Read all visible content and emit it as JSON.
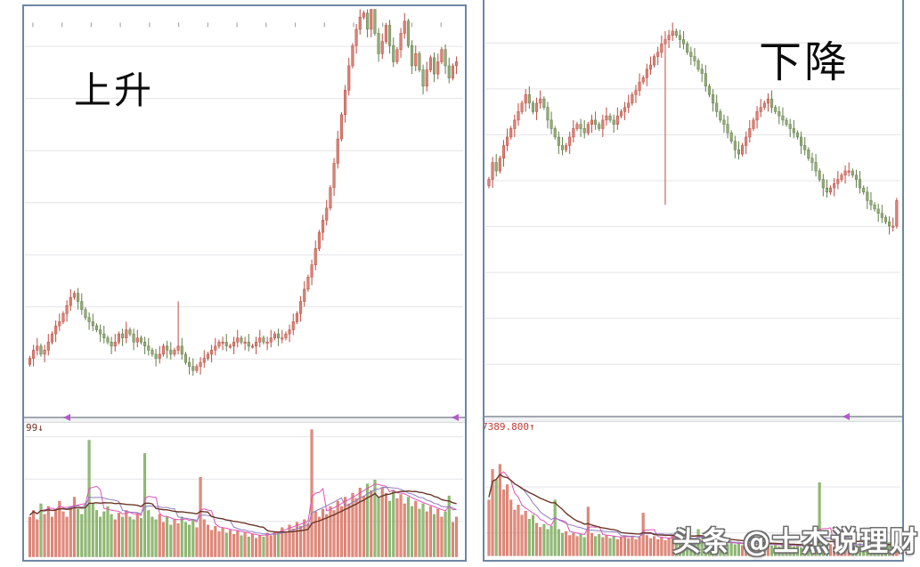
{
  "watermark": {
    "text": "头条 @士杰说理财"
  },
  "colors": {
    "candle_up": "#bb4a3e",
    "candle_up_fill": "#d98478",
    "candle_down": "#5f7d49",
    "candle_down_fill": "#97ab78",
    "volume_up_fill": "#e28b7c",
    "volume_up_stroke": "#c9604f",
    "volume_down_fill": "#92bb74",
    "volume_down_stroke": "#6f9c53",
    "ma_fast": "#e052b6",
    "ma_mid": "#8f7ac2",
    "ma_slow": "#6b3626",
    "grid": "#e4e4e8",
    "tick": "#a8a8b0",
    "border": "#6d86a5",
    "arrow": "#b45bc6",
    "label_uptrend": "#7b2d26",
    "label_downtrend": "#c23b2e",
    "annotation_text": "#0c0c0c",
    "watermark_text": "#ffffff"
  },
  "chart_data": [
    {
      "type": "candlestick+volume",
      "annotation": "上升",
      "trend": "uptrend",
      "scrollbar_label": "99↓",
      "legend": "none",
      "x_axis": {
        "tick_labels_visible": false
      },
      "y_axis": {
        "tick_labels_visible": false,
        "scale": "normalized 0-100",
        "ylim": [
          0,
          100
        ]
      },
      "grid": "horizontal",
      "close": [
        13,
        15,
        16,
        14,
        15,
        17,
        19,
        21,
        22,
        24,
        26,
        28,
        29,
        27,
        25,
        23,
        22,
        21,
        20,
        19,
        18,
        17,
        16,
        17,
        19,
        18,
        20,
        19,
        17,
        18,
        17,
        16,
        15,
        14,
        13,
        14,
        16,
        15,
        14,
        15,
        16,
        14,
        12,
        11,
        10,
        11,
        12,
        13,
        14,
        15,
        16,
        17,
        17,
        16,
        16,
        17,
        18,
        17,
        17,
        16,
        16,
        17,
        18,
        17,
        17,
        18,
        19,
        18,
        18,
        19,
        20,
        22,
        24,
        27,
        30,
        33,
        36,
        40,
        44,
        47,
        50,
        55,
        61,
        67,
        73,
        79,
        85,
        90,
        94,
        97,
        98,
        94,
        99,
        93,
        88,
        91,
        95,
        90,
        86,
        89,
        93,
        96,
        90,
        85,
        88,
        84,
        80,
        84,
        87,
        83,
        86,
        89,
        85,
        82,
        85,
        86
      ],
      "volume": [
        30,
        35,
        28,
        40,
        32,
        38,
        30,
        36,
        42,
        34,
        30,
        38,
        45,
        36,
        32,
        40,
        88,
        40,
        35,
        30,
        34,
        38,
        32,
        28,
        33,
        30,
        35,
        30,
        28,
        32,
        29,
        78,
        35,
        30,
        28,
        32,
        26,
        30,
        24,
        28,
        25,
        30,
        26,
        24,
        28,
        22,
        60,
        28,
        24,
        20,
        23,
        19,
        22,
        18,
        20,
        17,
        20,
        16,
        18,
        15,
        17,
        14,
        16,
        15,
        18,
        16,
        19,
        18,
        22,
        19,
        24,
        21,
        26,
        23,
        28,
        25,
        96,
        34,
        30,
        36,
        32,
        38,
        35,
        42,
        38,
        45,
        40,
        48,
        44,
        52,
        46,
        55,
        50,
        58,
        45,
        52,
        48,
        42,
        50,
        44,
        47,
        40,
        45,
        38,
        42,
        36,
        40,
        34,
        38,
        32,
        36,
        30,
        34,
        46,
        26,
        30
      ],
      "wick_overrides": {
        "40": [
          27,
          14
        ],
        "92": [
          99.5,
          92
        ]
      },
      "scroll_arrow_fractions": [
        0.095,
        0.968
      ]
    },
    {
      "type": "candlestick+volume",
      "annotation": "下降",
      "trend": "downtrend",
      "scrollbar_label": "7389.800↑",
      "legend": "none",
      "x_axis": {
        "tick_labels_visible": false
      },
      "y_axis": {
        "tick_labels_visible": false,
        "scale": "normalized 0-100",
        "ylim": [
          0,
          100
        ]
      },
      "grid": "horizontal",
      "close": [
        58,
        62,
        60,
        63,
        66,
        68,
        70,
        72,
        74,
        76,
        78,
        76,
        74,
        76,
        77,
        75,
        72,
        70,
        68,
        66,
        65,
        66,
        68,
        70,
        71,
        70,
        69,
        71,
        72,
        71,
        70,
        72,
        73,
        72,
        71,
        73,
        74,
        75,
        76,
        78,
        79,
        81,
        82,
        84,
        85,
        87,
        88,
        90,
        91,
        92,
        93,
        92,
        91,
        90,
        88,
        87,
        86,
        84,
        83,
        80,
        78,
        76,
        74,
        72,
        71,
        69,
        67,
        65,
        64,
        66,
        68,
        70,
        72,
        74,
        75,
        76,
        77,
        75,
        74,
        73,
        72,
        71,
        70,
        69,
        68,
        66,
        65,
        63,
        62,
        60,
        58,
        56,
        55,
        56,
        57,
        58,
        59,
        60,
        60,
        59,
        58,
        56,
        55,
        53,
        52,
        51,
        50,
        49,
        48,
        47,
        47,
        53
      ],
      "volume": [
        55,
        85,
        75,
        90,
        65,
        70,
        55,
        45,
        50,
        40,
        44,
        36,
        40,
        32,
        28,
        31,
        26,
        29,
        55,
        26,
        22,
        24,
        20,
        22,
        19,
        21,
        18,
        48,
        22,
        19,
        21,
        18,
        20,
        17,
        19,
        16,
        18,
        20,
        17,
        19,
        16,
        18,
        42,
        20,
        17,
        19,
        16,
        18,
        15,
        17,
        19,
        16,
        18,
        15,
        17,
        14,
        16,
        26,
        15,
        13,
        15,
        12,
        14,
        12,
        13,
        11,
        13,
        11,
        12,
        10,
        12,
        11,
        13,
        10,
        12,
        10,
        11,
        10,
        11,
        9,
        11,
        9,
        10,
        9,
        10,
        8,
        10,
        9,
        10,
        8,
        72,
        12,
        10,
        11,
        9,
        11,
        10,
        12,
        9,
        11,
        10,
        12,
        9,
        11,
        10,
        12,
        9,
        11,
        10,
        13,
        9,
        14
      ],
      "wick_overrides": {
        "48": [
          93,
          52
        ]
      },
      "scroll_arrow_fractions": [
        0.862
      ]
    }
  ]
}
